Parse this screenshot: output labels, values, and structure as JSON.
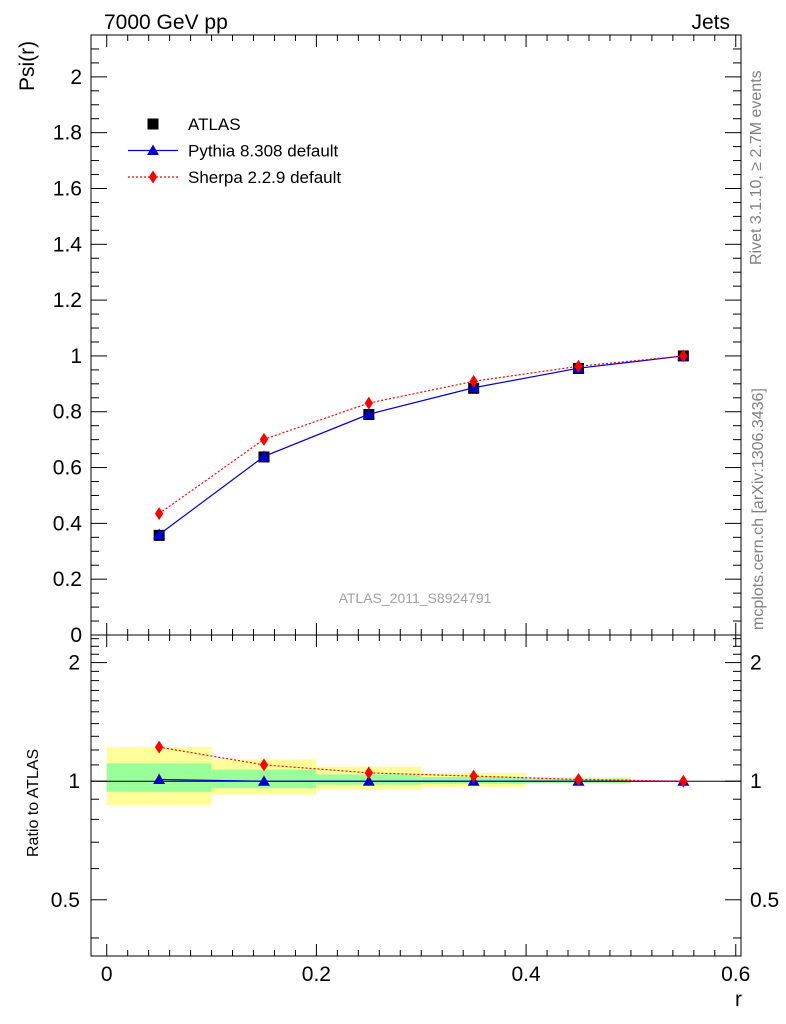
{
  "header": {
    "left": "7000 GeV pp",
    "right": "Jets"
  },
  "side_labels": {
    "rivet": "Rivet 3.1.10, ≥ 2.7M events",
    "mcplots": "mcplots.cern.ch [arXiv:1306.3436]"
  },
  "colors": {
    "atlas": "#000000",
    "pythia": "#0000cc",
    "sherpa": "#ff0000",
    "band_inner": "#99ff99",
    "band_outer": "#ffff99"
  },
  "chart_data": [
    {
      "type": "line",
      "panel": "main",
      "title": "",
      "ylabel": "Psi(r)",
      "xlabel": "",
      "xlim": [
        -0.015,
        0.605
      ],
      "ylim": [
        0,
        2.15
      ],
      "yticks": [
        0,
        0.2,
        0.4,
        0.6,
        0.8,
        1,
        1.2,
        1.4,
        1.6,
        1.8,
        2
      ],
      "ytick_labels": [
        "0",
        "0.2",
        "0.4",
        "0.6",
        "0.8",
        "1",
        "1.2",
        "1.4",
        "1.6",
        "1.8",
        "2"
      ],
      "watermark": "ATLAS_2011_S8924791",
      "legend_position": "top-left",
      "x": [
        0.05,
        0.15,
        0.25,
        0.35,
        0.45,
        0.55
      ],
      "series": [
        {
          "name": "ATLAS",
          "marker": "square",
          "values": [
            0.357,
            0.638,
            0.79,
            0.884,
            0.955,
            1.0
          ]
        },
        {
          "name": "Pythia 8.308 default",
          "marker": "triangle",
          "values": [
            0.36,
            0.64,
            0.791,
            0.886,
            0.956,
            1.0
          ]
        },
        {
          "name": "Sherpa 2.2.9 default",
          "marker": "diamond",
          "values": [
            0.435,
            0.701,
            0.831,
            0.909,
            0.963,
            1.0
          ]
        }
      ]
    },
    {
      "type": "line",
      "panel": "ratio",
      "title": "",
      "ylabel": "Ratio to ATLAS",
      "xlabel": "r",
      "xlim": [
        -0.015,
        0.605
      ],
      "ylim": [
        0.36,
        2.35
      ],
      "y_scale": "log",
      "xticks": [
        0,
        0.2,
        0.4,
        0.6
      ],
      "xtick_labels": [
        "0",
        "0.2",
        "0.4",
        "0.6"
      ],
      "yticks": [
        0.5,
        1,
        2
      ],
      "ytick_labels": [
        "0.5",
        "1",
        "2"
      ],
      "bins": [
        [
          0.0,
          0.1
        ],
        [
          0.1,
          0.2
        ],
        [
          0.2,
          0.3
        ],
        [
          0.3,
          0.4
        ],
        [
          0.4,
          0.5
        ],
        [
          0.5,
          0.6
        ]
      ],
      "band_inner": [
        [
          0.94,
          1.11
        ],
        [
          0.96,
          1.07
        ],
        [
          0.98,
          1.04
        ],
        [
          0.985,
          1.025
        ],
        [
          0.99,
          1.015
        ],
        [
          1.0,
          1.0
        ]
      ],
      "band_outer": [
        [
          0.87,
          1.22
        ],
        [
          0.925,
          1.135
        ],
        [
          0.95,
          1.09
        ],
        [
          0.965,
          1.05
        ],
        [
          0.985,
          1.025
        ],
        [
          1.0,
          1.0
        ]
      ],
      "x": [
        0.05,
        0.15,
        0.25,
        0.35,
        0.45,
        0.55
      ],
      "series": [
        {
          "name": "Pythia 8.308 default",
          "marker": "triangle",
          "values": [
            1.01,
            1.0,
            1.0,
            1.0,
            1.0,
            1.0
          ]
        },
        {
          "name": "Sherpa 2.2.9 default",
          "marker": "diamond",
          "values": [
            1.22,
            1.1,
            1.05,
            1.03,
            1.01,
            1.0
          ]
        }
      ]
    }
  ]
}
